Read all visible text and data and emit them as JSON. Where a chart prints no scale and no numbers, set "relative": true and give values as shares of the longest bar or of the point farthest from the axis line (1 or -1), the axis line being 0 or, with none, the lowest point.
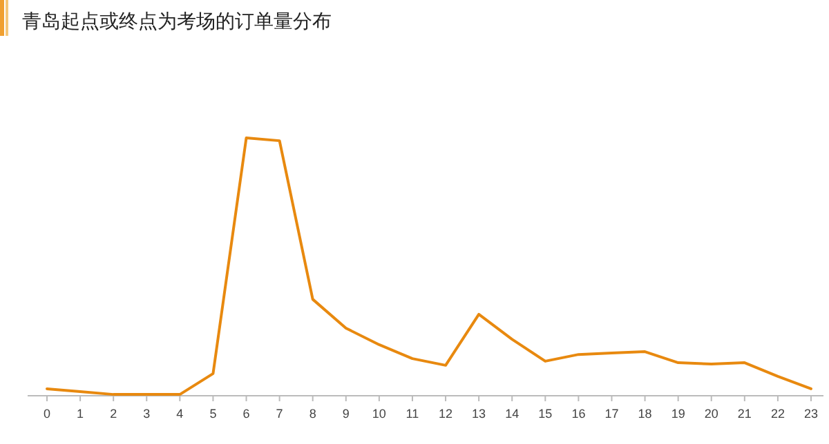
{
  "chart_data": {
    "type": "line",
    "title": "青岛起点或终点为考场的订单量分布",
    "relative": true,
    "color": "#e8890f",
    "categories": [
      "0",
      "1",
      "2",
      "3",
      "4",
      "5",
      "6",
      "7",
      "8",
      "9",
      "10",
      "11",
      "12",
      "13",
      "14",
      "15",
      "16",
      "17",
      "18",
      "19",
      "20",
      "21",
      "22",
      "23"
    ],
    "values": [
      0.027,
      0.016,
      0.005,
      0.005,
      0.005,
      0.086,
      1,
      0.989,
      0.374,
      0.262,
      0.198,
      0.144,
      0.118,
      0.316,
      0.219,
      0.134,
      0.16,
      0.166,
      0.171,
      0.128,
      0.123,
      0.128,
      0.075,
      0.027
    ]
  }
}
